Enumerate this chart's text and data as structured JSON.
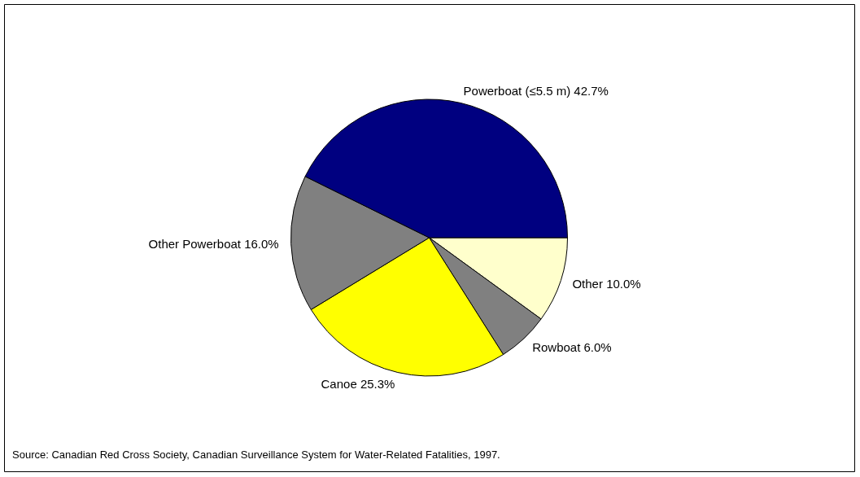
{
  "chart_data": {
    "type": "pie",
    "categories": [
      "Other",
      "Rowboat",
      "Canoe",
      "Other Powerboat",
      "Powerboat (≤5.5 m)"
    ],
    "values": [
      10.0,
      6.0,
      25.3,
      16.0,
      42.7
    ],
    "colors": [
      "#ffffcc",
      "#808080",
      "#ffff00",
      "#808080",
      "#000080"
    ],
    "value_labels": [
      "10.0%",
      "6.0%",
      "25.3%",
      "16.0%",
      "42.7%"
    ],
    "legend": false,
    "annotations": [
      "Source: Canadian Red Cross Society, Canadian Surveillance System for Water-Related Fatalities, 1997."
    ]
  }
}
